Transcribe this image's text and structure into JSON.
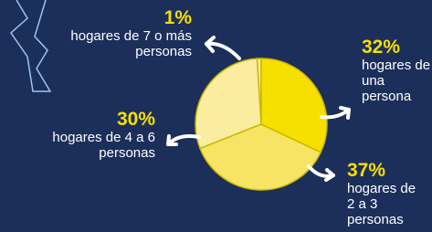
{
  "chart_data": {
    "type": "pie",
    "categories": [
      "hogares de una persona",
      "hogares de 2 a 3 personas",
      "hogares de 4 a 6 personas",
      "hogares de 7 o más personas"
    ],
    "values": [
      32,
      37,
      30,
      1
    ],
    "value_labels": [
      "32%",
      "37%",
      "30%",
      "1%"
    ],
    "colors": [
      "#f7df00",
      "#f8e464",
      "#faeda0",
      "#faeda0"
    ]
  }
}
